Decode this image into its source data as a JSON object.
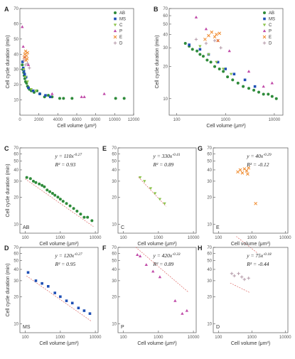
{
  "colors": {
    "AB": "#2e8b3a",
    "MS": "#1f4fb5",
    "C": "#8bc34a",
    "P": "#c04aa8",
    "E": "#f08a2c",
    "D": "#b49aa8",
    "axis": "#555555",
    "fit": "#d9534f"
  },
  "panels": [
    {
      "label": "A",
      "cell": "",
      "eq": "",
      "r2": ""
    },
    {
      "label": "B",
      "cell": "",
      "eq": "",
      "r2": ""
    },
    {
      "label": "C",
      "cell": "AB",
      "eq": "y = 110x^-0.27",
      "r2": "R² = 0.93"
    },
    {
      "label": "E",
      "cell": "C",
      "eq": "y = 330x^-0.41",
      "r2": "R² = 0.89"
    },
    {
      "label": "G",
      "cell": "E",
      "eq": "y = 40x^-0.29",
      "r2": "R² = -0.12"
    },
    {
      "label": "D",
      "cell": "MS",
      "eq": "y = 120x^-0.27",
      "r2": "R² = 0.95"
    },
    {
      "label": "F",
      "cell": "P",
      "eq": "y = 420x^-0.33",
      "r2": "R² = 0.89"
    },
    {
      "label": "H",
      "cell": "D",
      "eq": "y = 75x^-0.18",
      "r2": "R² = -0.44"
    }
  ],
  "chart_data": [
    {
      "panel": "A",
      "type": "scatter",
      "xlabel": "Cell volume (μm³)",
      "ylabel": "Cell cycle duration (min)",
      "xlim": [
        0,
        12000
      ],
      "ylim": [
        0,
        70
      ],
      "xticks": [
        "0",
        "2000",
        "4000",
        "6000",
        "8000",
        "10000",
        "12000"
      ],
      "yticks": [
        "10",
        "20",
        "30",
        "40",
        "50",
        "60",
        "70"
      ],
      "legend": [
        "AB",
        "MS",
        "C",
        "P",
        "E",
        "D"
      ],
      "legend_position": "top-right",
      "series": [
        {
          "name": "AB",
          "x": [
            250,
            300,
            400,
            450,
            520,
            600,
            700,
            800,
            900,
            1000,
            1200,
            1500,
            1800,
            2100,
            2600,
            3000,
            3400,
            4200,
            4600,
            5500,
            10100,
            11000
          ],
          "y": [
            33,
            30,
            28,
            26,
            24,
            22,
            21,
            19,
            18,
            17,
            16,
            15,
            16,
            14,
            12,
            13,
            12,
            11,
            11,
            11,
            11,
            11
          ]
        },
        {
          "name": "MS",
          "x": [
            280,
            350,
            420,
            500,
            650,
            900,
            1400,
            2100,
            2700,
            3200
          ],
          "y": [
            35,
            31,
            29,
            27,
            25,
            18,
            16,
            14,
            13,
            12
          ]
        },
        {
          "name": "C",
          "x": [
            400,
            600,
            800,
            1200,
            1700
          ],
          "y": [
            30,
            25,
            22,
            17,
            16
          ]
        },
        {
          "name": "P",
          "x": [
            250,
            350,
            500,
            900,
            3400,
            6500,
            6800,
            8900
          ],
          "y": [
            58,
            45,
            38,
            33,
            14,
            12,
            12,
            14
          ]
        },
        {
          "name": "E",
          "x": [
            450,
            520,
            600,
            650,
            700,
            750,
            800
          ],
          "y": [
            38,
            40,
            42,
            36,
            39,
            37,
            41
          ]
        },
        {
          "name": "D",
          "x": [
            400,
            600,
            800,
            1000
          ],
          "y": [
            36,
            33,
            34,
            31
          ]
        }
      ]
    },
    {
      "panel": "B",
      "type": "scatter",
      "log": true,
      "xlabel": "Cell volume (μm³)",
      "ylabel": "Cell cycle duration (min)",
      "xlim": [
        70,
        15000
      ],
      "ylim": [
        7,
        70
      ],
      "xticks": [
        "100",
        "1000",
        "10000"
      ],
      "yticks": [
        "10",
        "20",
        "30",
        "40",
        "50",
        "60",
        "70"
      ],
      "legend": [
        "AB",
        "MS",
        "C",
        "P",
        "E",
        "D"
      ],
      "legend_position": "top-right",
      "series": [
        {
          "name": "AB",
          "x": [
            150,
            180,
            210,
            260,
            300,
            350,
            420,
            500,
            600,
            750,
            900,
            1100,
            1400,
            1800,
            2300,
            3000,
            3800,
            4800,
            6000,
            7500,
            9000,
            11000
          ],
          "y": [
            33,
            31,
            29,
            28,
            26,
            25,
            23,
            22,
            20,
            19,
            18,
            16,
            15,
            14,
            13,
            12.5,
            12,
            11.5,
            11,
            11,
            10.5,
            10
          ]
        },
        {
          "name": "MS",
          "x": [
            180,
            300,
            450,
            700,
            1000,
            1500,
            2500,
            4000
          ],
          "y": [
            32,
            29,
            26,
            22,
            19,
            17,
            15,
            13
          ]
        },
        {
          "name": "C",
          "x": [
            300,
            450,
            650,
            900,
            1300
          ],
          "y": [
            31,
            26,
            22,
            19,
            17
          ]
        },
        {
          "name": "P",
          "x": [
            250,
            400,
            700,
            1200,
            3000,
            6000,
            9000
          ],
          "y": [
            58,
            45,
            35,
            28,
            18,
            13,
            14
          ]
        },
        {
          "name": "E",
          "x": [
            380,
            450,
            520,
            600,
            650,
            700,
            750
          ],
          "y": [
            36,
            39,
            42,
            38,
            40,
            35,
            41
          ]
        },
        {
          "name": "D",
          "x": [
            250,
            400,
            600,
            800
          ],
          "y": [
            36,
            33,
            35,
            30
          ]
        }
      ]
    },
    {
      "panel": "C",
      "type": "scatter",
      "log": true,
      "series": [
        {
          "name": "AB",
          "x": [
            110,
            140,
            170,
            200,
            250,
            300,
            350,
            420,
            500,
            600,
            700,
            850,
            1000,
            1200,
            1500,
            1900,
            2400,
            3000,
            3800,
            4800,
            6000,
            8000
          ],
          "y": [
            33,
            32,
            30,
            29,
            28,
            27,
            26,
            24,
            23,
            22,
            21,
            20,
            19,
            18,
            17,
            16,
            15,
            14,
            13,
            12,
            12,
            11
          ]
        }
      ],
      "fit": {
        "a": 110,
        "b": -0.27
      },
      "xlabel": "Cell volume (μm³)",
      "ylabel": "Cell cycle duration (min)"
    },
    {
      "panel": "E",
      "type": "scatter",
      "log": true,
      "series": [
        {
          "name": "C",
          "x": [
            300,
            400,
            600,
            800,
            1100,
            1500
          ],
          "y": [
            33,
            30,
            25,
            22,
            19,
            17
          ]
        }
      ],
      "fit": {
        "a": 330,
        "b": -0.41
      },
      "xlabel": "Cell volume (μm³)",
      "ylabel": ""
    },
    {
      "panel": "G",
      "type": "scatter",
      "log": true,
      "series": [
        {
          "name": "E",
          "x": [
            380,
            450,
            520,
            600,
            700,
            750,
            800,
            1300
          ],
          "y": [
            38,
            40,
            37,
            41,
            39,
            36,
            42,
            17
          ]
        }
      ],
      "fit": {
        "a": 40,
        "b": -0.29
      },
      "xlabel": "Cell volume (μm³)",
      "ylabel": ""
    },
    {
      "panel": "D",
      "type": "scatter",
      "log": true,
      "series": [
        {
          "name": "MS",
          "x": [
            120,
            200,
            300,
            450,
            700,
            1000,
            1500,
            2200,
            3300,
            4800,
            7000
          ],
          "y": [
            37,
            30,
            28,
            26,
            22,
            20,
            18,
            17,
            15,
            14,
            13
          ]
        }
      ],
      "fit": {
        "a": 120,
        "b": -0.27
      },
      "xlabel": "Cell volume (μm³)",
      "ylabel": "Cell cycle duration (min)"
    },
    {
      "panel": "F",
      "type": "scatter",
      "log": true,
      "series": [
        {
          "name": "P",
          "x": [
            250,
            300,
            450,
            700,
            1100,
            3000,
            4800,
            6500
          ],
          "y": [
            58,
            56,
            45,
            38,
            33,
            18,
            13,
            14
          ]
        }
      ],
      "fit": {
        "a": 420,
        "b": -0.33
      },
      "xlabel": "Cell volume (μm³)",
      "ylabel": ""
    },
    {
      "panel": "H",
      "type": "scatter",
      "log": true,
      "series": [
        {
          "name": "D",
          "x": [
            250,
            300,
            400,
            500,
            600,
            800
          ],
          "y": [
            36,
            34,
            36,
            33,
            31,
            32
          ]
        }
      ],
      "fit": {
        "a": 75,
        "b": -0.18
      },
      "xlabel": "Cell volume (μm³)",
      "ylabel": ""
    }
  ]
}
